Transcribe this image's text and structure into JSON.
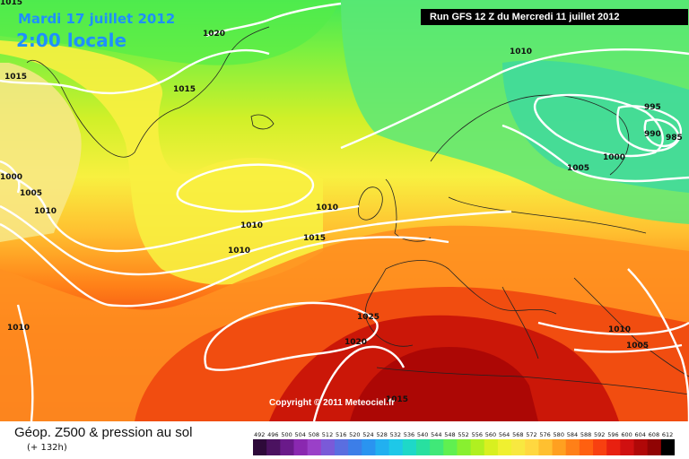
{
  "header": {
    "date": "Mardi 17 juillet 2012",
    "time": "2:00 locale",
    "run": "Run GFS 12 Z du Mercredi 11 juillet 2012"
  },
  "copyright": "Copyright © 2011 Meteociel.fr",
  "legend": {
    "title": "Géop. Z500 & pression au sol",
    "subtitle": "(+ 132h)",
    "ticks": [
      "492",
      "496",
      "500",
      "504",
      "508",
      "512",
      "516",
      "520",
      "524",
      "528",
      "532",
      "536",
      "540",
      "544",
      "548",
      "552",
      "556",
      "560",
      "564",
      "568",
      "572",
      "576",
      "580",
      "584",
      "588",
      "592",
      "596",
      "600",
      "604",
      "608",
      "612"
    ],
    "colors": [
      "#2e0a3a",
      "#4b1260",
      "#6a1a8a",
      "#8a28b0",
      "#9a40c8",
      "#7a5ad8",
      "#5a6ee0",
      "#3c7ee8",
      "#2a94f0",
      "#22b0f0",
      "#1ec8e8",
      "#1ed8c8",
      "#28e0a0",
      "#40e878",
      "#60f050",
      "#88f030",
      "#b0f020",
      "#d8f020",
      "#f0f030",
      "#f8e840",
      "#ffd840",
      "#ffc030",
      "#ffa020",
      "#ff8018",
      "#ff6010",
      "#f84010",
      "#e82010",
      "#d01010",
      "#b00808",
      "#900404",
      "#000000"
    ]
  },
  "isobars": {
    "labels": [
      "1020",
      "1015",
      "1015",
      "1015",
      "1010",
      "1005",
      "1010",
      "1010",
      "1010",
      "1015",
      "1010",
      "995",
      "990",
      "985",
      "1000",
      "1005",
      "1025",
      "1020",
      "1010",
      "1005",
      "1010",
      "1015",
      "1000"
    ]
  },
  "colors": {
    "title_blue": "#1e90ff",
    "isobar": "#ffffff",
    "coastline": "#222222"
  }
}
